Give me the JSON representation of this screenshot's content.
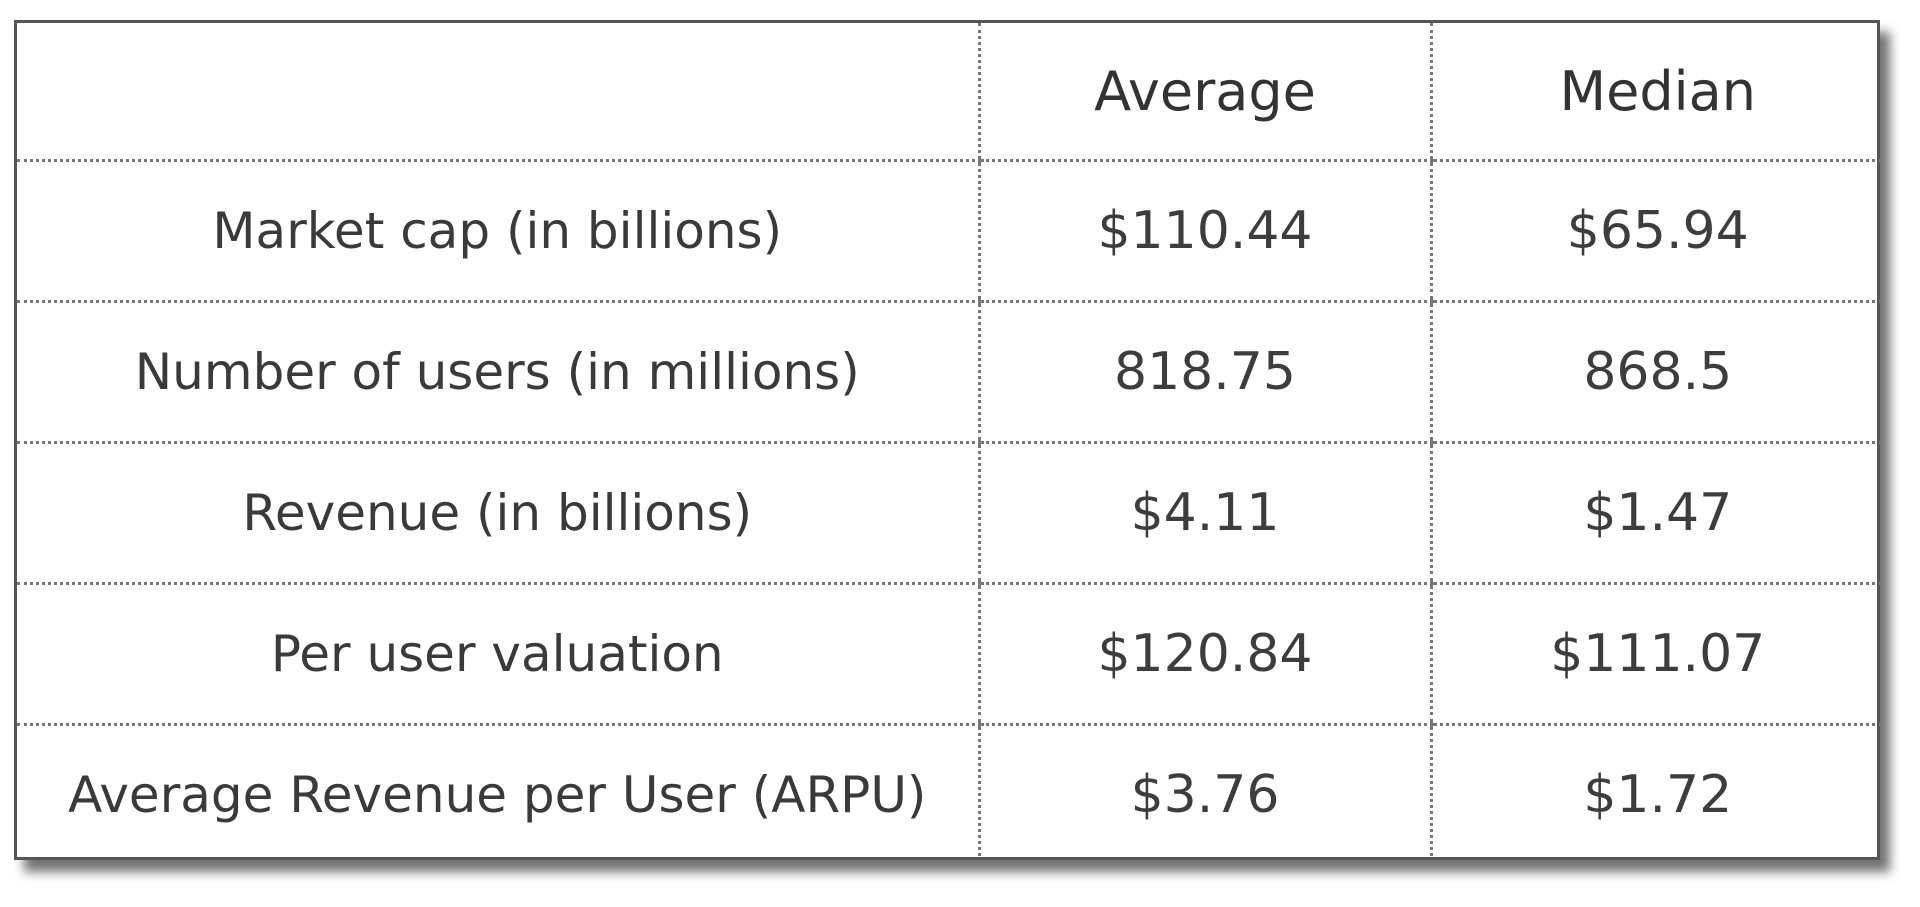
{
  "chart_data": {
    "type": "table",
    "columns": [
      "",
      "Average",
      "Median"
    ],
    "rows": [
      {
        "label": "Market cap (in billions)",
        "average": "$110.44",
        "median": "$65.94"
      },
      {
        "label": "Number of users (in millions)",
        "average": "818.75",
        "median": "868.5"
      },
      {
        "label": "Revenue (in billions)",
        "average": "$4.11",
        "median": "$1.47"
      },
      {
        "label": "Per user valuation",
        "average": "$120.84",
        "median": "$111.07"
      },
      {
        "label": "Average Revenue per User (ARPU)",
        "average": "$3.76",
        "median": "$1.72"
      }
    ]
  }
}
